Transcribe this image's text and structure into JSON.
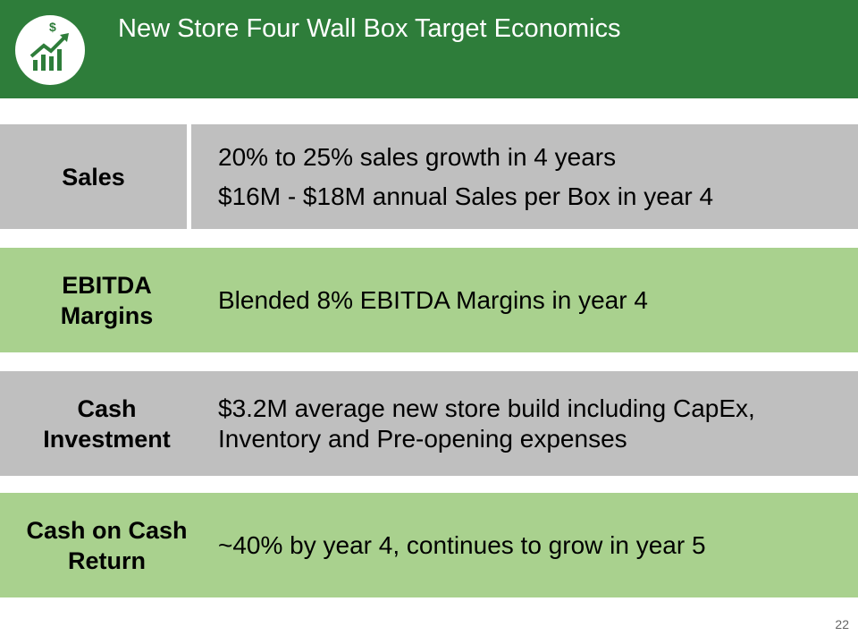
{
  "header": {
    "title": "New Store Four Wall Box Target Economics"
  },
  "rows": [
    {
      "label": "Sales",
      "lines": [
        "20% to 25% sales growth in 4 years",
        "$16M - $18M annual Sales per Box in year 4"
      ]
    },
    {
      "label": "EBITDA Margins",
      "lines": [
        "Blended 8% EBITDA Margins in year 4"
      ]
    },
    {
      "label": "Cash Investment",
      "lines": [
        "$3.2M average new store build including CapEx, Inventory and Pre-opening expenses"
      ]
    },
    {
      "label": "Cash on Cash Return",
      "lines": [
        "~40% by year 4, continues to grow in year 5"
      ]
    }
  ],
  "footer": {
    "page_number": "22"
  }
}
